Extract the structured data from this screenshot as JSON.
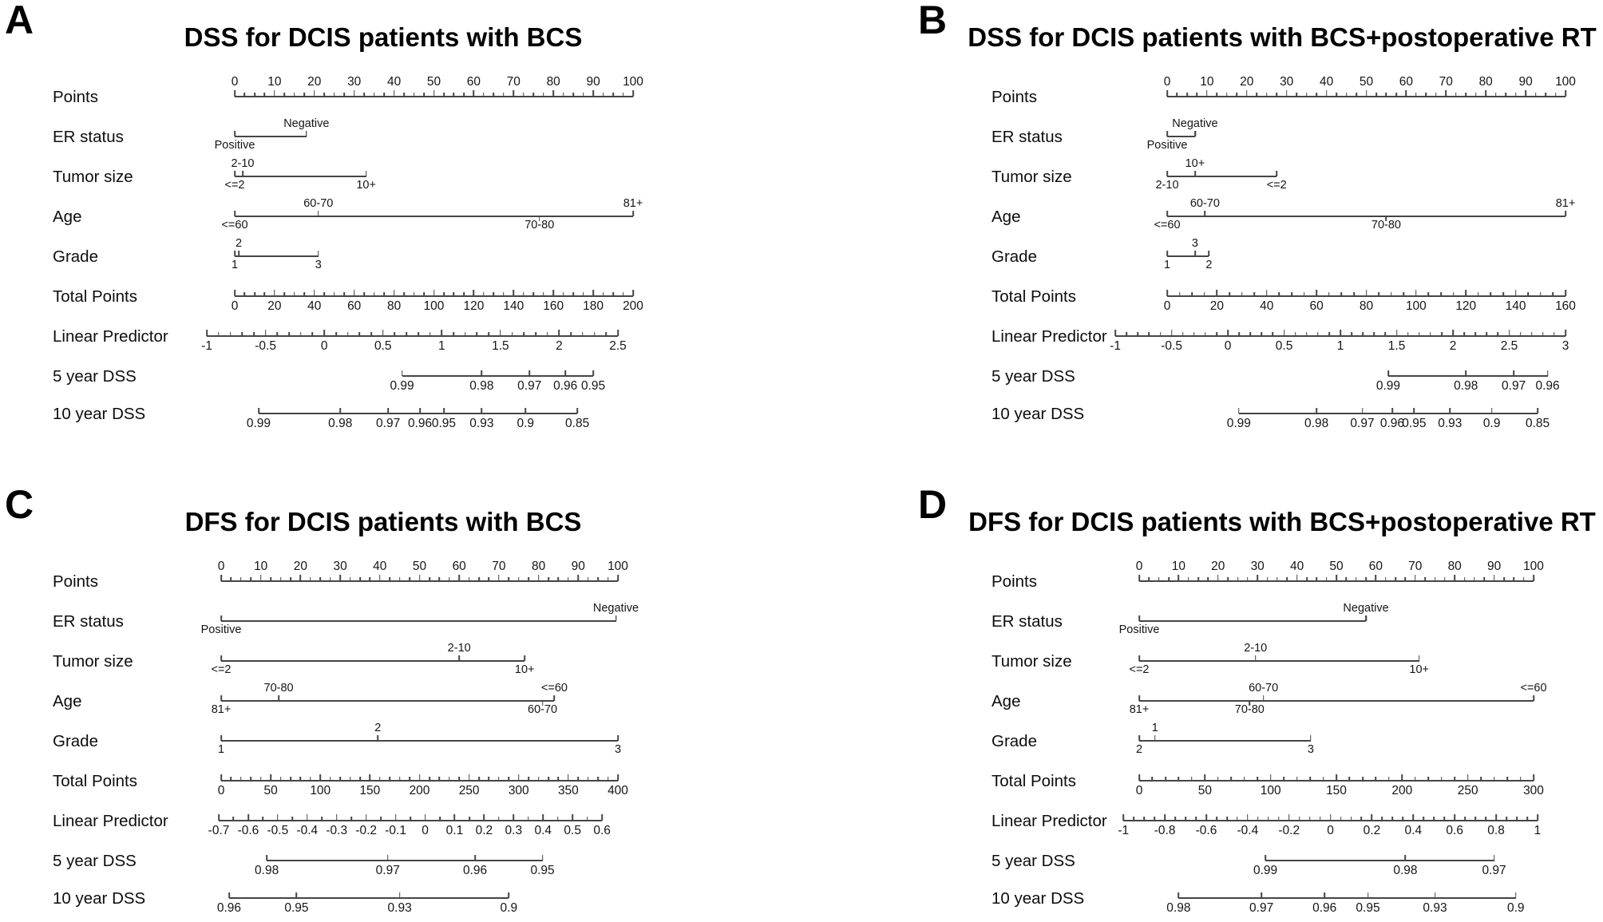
{
  "figure": {
    "background_color": "#ffffff",
    "text_color": "#111111",
    "line_color": "#454545",
    "description": "Four nomograms (A-D) predicting DSS and DFS for DCIS patients"
  },
  "chart_data": [
    {
      "type": "nomogram",
      "panel": "A",
      "title": "DSS for DCIS patients with BCS",
      "rows": [
        {
          "label": "Points",
          "type": "numeric",
          "min": 0,
          "max": 100,
          "step": 10,
          "minor": 2.5,
          "p1": 0,
          "p2": 100,
          "label_side": "above"
        },
        {
          "label": "ER status",
          "type": "factor",
          "line": [
            0,
            18
          ],
          "entries": [
            {
              "p": 18,
              "text": "Negative",
              "side": "above",
              "tick": true
            },
            {
              "p": 0,
              "text": "Positive",
              "side": "below",
              "tick": false
            }
          ]
        },
        {
          "label": "Tumor size",
          "type": "factor",
          "line": [
            0,
            33
          ],
          "entries": [
            {
              "p": 2,
              "text": "2-10",
              "side": "above",
              "tick": true
            },
            {
              "p": 0,
              "text": "<=2",
              "side": "below",
              "tick": false
            },
            {
              "p": 33,
              "text": "10+",
              "side": "below",
              "tick": false
            }
          ]
        },
        {
          "label": "Age",
          "type": "factor",
          "line": [
            0,
            100
          ],
          "entries": [
            {
              "p": 21,
              "text": "60-70",
              "side": "above",
              "tick": true
            },
            {
              "p": 100,
              "text": "81+",
              "side": "above",
              "tick": false
            },
            {
              "p": 0,
              "text": "<=60",
              "side": "below",
              "tick": false
            },
            {
              "p": 76.5,
              "text": "70-80",
              "side": "below",
              "tick": true
            }
          ]
        },
        {
          "label": "Grade",
          "type": "factor",
          "line": [
            0,
            21
          ],
          "entries": [
            {
              "p": 1,
              "text": "2",
              "side": "above",
              "tick": true
            },
            {
              "p": 0,
              "text": "1",
              "side": "below",
              "tick": false
            },
            {
              "p": 21,
              "text": "3",
              "side": "below",
              "tick": false
            }
          ]
        },
        {
          "label": "Total Points",
          "type": "numeric",
          "min": 0,
          "max": 200,
          "step": 20,
          "minor": 5,
          "p1": 0,
          "p2": 100,
          "label_side": "below"
        },
        {
          "label": "Linear Predictor",
          "type": "numeric",
          "min": -1,
          "max": 2.5,
          "step": 0.5,
          "minor": 0.1,
          "p1": -7,
          "p2": 96.2,
          "label_side": "below"
        },
        {
          "label": "5 year DSS",
          "type": "survival",
          "entries": [
            {
              "p": 42,
              "text": "0.99"
            },
            {
              "p": 62,
              "text": "0.98"
            },
            {
              "p": 74,
              "text": "0.97"
            },
            {
              "p": 83,
              "text": "0.96"
            },
            {
              "p": 90,
              "text": "0.95"
            }
          ]
        },
        {
          "label": "10 year DSS",
          "type": "survival",
          "entries": [
            {
              "p": 6,
              "text": "0.99"
            },
            {
              "p": 26.5,
              "text": "0.98"
            },
            {
              "p": 38.5,
              "text": "0.97"
            },
            {
              "p": 46.5,
              "text": "0.96"
            },
            {
              "p": 52.5,
              "text": "0.95"
            },
            {
              "p": 62,
              "text": "0.93"
            },
            {
              "p": 73,
              "text": "0.9"
            },
            {
              "p": 86,
              "text": "0.85"
            }
          ]
        }
      ]
    },
    {
      "type": "nomogram",
      "panel": "B",
      "title": "DSS for DCIS patients with BCS+postoperative RT",
      "rows": [
        {
          "label": "Points",
          "type": "numeric",
          "min": 0,
          "max": 100,
          "step": 10,
          "minor": 2.5,
          "p1": 0,
          "p2": 100,
          "label_side": "above"
        },
        {
          "label": "ER status",
          "type": "factor",
          "line": [
            0,
            7
          ],
          "entries": [
            {
              "p": 7,
              "text": "Negative",
              "side": "above",
              "tick": true
            },
            {
              "p": 0,
              "text": "Positive",
              "side": "below",
              "tick": false
            }
          ]
        },
        {
          "label": "Tumor size",
          "type": "factor",
          "line": [
            0,
            27.5
          ],
          "entries": [
            {
              "p": 7,
              "text": "10+",
              "side": "above",
              "tick": true
            },
            {
              "p": 0,
              "text": "2-10",
              "side": "below",
              "tick": false
            },
            {
              "p": 27.5,
              "text": "<=2",
              "side": "below",
              "tick": false
            }
          ]
        },
        {
          "label": "Age",
          "type": "factor",
          "line": [
            0,
            100
          ],
          "entries": [
            {
              "p": 9.5,
              "text": "60-70",
              "side": "above",
              "tick": true
            },
            {
              "p": 100,
              "text": "81+",
              "side": "above",
              "tick": false
            },
            {
              "p": 0,
              "text": "<=60",
              "side": "below",
              "tick": false
            },
            {
              "p": 55,
              "text": "70-80",
              "side": "below",
              "tick": true
            }
          ]
        },
        {
          "label": "Grade",
          "type": "factor",
          "line": [
            0,
            10.5
          ],
          "entries": [
            {
              "p": 7,
              "text": "3",
              "side": "above",
              "tick": true
            },
            {
              "p": 0,
              "text": "1",
              "side": "below",
              "tick": false
            },
            {
              "p": 10.5,
              "text": "2",
              "side": "below",
              "tick": false
            }
          ]
        },
        {
          "label": "Total Points",
          "type": "numeric",
          "min": 0,
          "max": 160,
          "step": 20,
          "minor": 5,
          "p1": 0,
          "p2": 100,
          "label_side": "below"
        },
        {
          "label": "Linear Predictor",
          "type": "numeric",
          "min": -1,
          "max": 3,
          "step": 0.5,
          "minor": 0.1,
          "p1": -13,
          "p2": 100,
          "label_side": "below"
        },
        {
          "label": "5 year DSS",
          "type": "survival",
          "entries": [
            {
              "p": 55.5,
              "text": "0.99"
            },
            {
              "p": 75,
              "text": "0.98"
            },
            {
              "p": 87,
              "text": "0.97"
            },
            {
              "p": 95.5,
              "text": "0.96"
            }
          ]
        },
        {
          "label": "10 year DSS",
          "type": "survival",
          "entries": [
            {
              "p": 18,
              "text": "0.99"
            },
            {
              "p": 37.5,
              "text": "0.98"
            },
            {
              "p": 49,
              "text": "0.97"
            },
            {
              "p": 56.5,
              "text": "0.96"
            },
            {
              "p": 62,
              "text": "0.95"
            },
            {
              "p": 71,
              "text": "0.93"
            },
            {
              "p": 81.5,
              "text": "0.9"
            },
            {
              "p": 93,
              "text": "0.85"
            }
          ]
        }
      ]
    },
    {
      "type": "nomogram",
      "panel": "C",
      "title": "DFS for DCIS patients with BCS",
      "rows": [
        {
          "label": "Points",
          "type": "numeric",
          "min": 0,
          "max": 100,
          "step": 10,
          "minor": 2.5,
          "p1": 0,
          "p2": 100,
          "label_side": "above"
        },
        {
          "label": "ER status",
          "type": "factor",
          "line": [
            0,
            99.5
          ],
          "entries": [
            {
              "p": 99.5,
              "text": "Negative",
              "side": "above",
              "tick": true
            },
            {
              "p": 0,
              "text": "Positive",
              "side": "below",
              "tick": false
            }
          ]
        },
        {
          "label": "Tumor size",
          "type": "factor",
          "line": [
            0,
            76.5
          ],
          "entries": [
            {
              "p": 60,
              "text": "2-10",
              "side": "above",
              "tick": true
            },
            {
              "p": 0,
              "text": "<=2",
              "side": "below",
              "tick": false
            },
            {
              "p": 76.5,
              "text": "10+",
              "side": "below",
              "tick": false
            }
          ]
        },
        {
          "label": "Age",
          "type": "factor",
          "line": [
            0,
            84
          ],
          "entries": [
            {
              "p": 14.5,
              "text": "70-80",
              "side": "above",
              "tick": true
            },
            {
              "p": 84,
              "text": "<=60",
              "side": "above",
              "tick": false
            },
            {
              "p": 0,
              "text": "81+",
              "side": "below",
              "tick": false
            },
            {
              "p": 81,
              "text": "60-70",
              "side": "below",
              "tick": true
            }
          ]
        },
        {
          "label": "Grade",
          "type": "factor",
          "line": [
            0,
            100
          ],
          "entries": [
            {
              "p": 39.5,
              "text": "2",
              "side": "above",
              "tick": true
            },
            {
              "p": 0,
              "text": "1",
              "side": "below",
              "tick": false
            },
            {
              "p": 100,
              "text": "3",
              "side": "below",
              "tick": false
            }
          ]
        },
        {
          "label": "Total Points",
          "type": "numeric",
          "min": 0,
          "max": 400,
          "step": 50,
          "minor": 10,
          "p1": 0,
          "p2": 100,
          "label_side": "below"
        },
        {
          "label": "Linear Predictor",
          "type": "numeric",
          "min": -0.7,
          "max": 0.6,
          "step": 0.1,
          "minor": 0.05,
          "p1": -0.6,
          "p2": 96,
          "label_side": "below"
        },
        {
          "label": "5 year DSS",
          "type": "survival",
          "entries": [
            {
              "p": 11.5,
              "text": "0.98"
            },
            {
              "p": 42,
              "text": "0.97"
            },
            {
              "p": 64,
              "text": "0.96"
            },
            {
              "p": 81,
              "text": "0.95"
            }
          ]
        },
        {
          "label": "10 year DSS",
          "type": "survival",
          "entries": [
            {
              "p": 2,
              "text": "0.96"
            },
            {
              "p": 19,
              "text": "0.95"
            },
            {
              "p": 45,
              "text": "0.93"
            },
            {
              "p": 72.5,
              "text": "0.9"
            }
          ]
        }
      ]
    },
    {
      "type": "nomogram",
      "panel": "D",
      "title": "DFS for DCIS patients with BCS+postoperative RT",
      "rows": [
        {
          "label": "Points",
          "type": "numeric",
          "min": 0,
          "max": 100,
          "step": 10,
          "minor": 2.5,
          "p1": 0,
          "p2": 100,
          "label_side": "above"
        },
        {
          "label": "ER status",
          "type": "factor",
          "line": [
            0,
            57.5
          ],
          "entries": [
            {
              "p": 57.5,
              "text": "Negative",
              "side": "above",
              "tick": true
            },
            {
              "p": 0,
              "text": "Positive",
              "side": "below",
              "tick": false
            }
          ]
        },
        {
          "label": "Tumor size",
          "type": "factor",
          "line": [
            0,
            71
          ],
          "entries": [
            {
              "p": 29.5,
              "text": "2-10",
              "side": "above",
              "tick": true
            },
            {
              "p": 0,
              "text": "<=2",
              "side": "below",
              "tick": false
            },
            {
              "p": 71,
              "text": "10+",
              "side": "below",
              "tick": false
            }
          ]
        },
        {
          "label": "Age",
          "type": "factor",
          "line": [
            0,
            100
          ],
          "entries": [
            {
              "p": 31.5,
              "text": "60-70",
              "side": "above",
              "tick": true
            },
            {
              "p": 100,
              "text": "<=60",
              "side": "above",
              "tick": false
            },
            {
              "p": 0,
              "text": "81+",
              "side": "below",
              "tick": false
            },
            {
              "p": 28,
              "text": "70-80",
              "side": "below",
              "tick": true
            }
          ]
        },
        {
          "label": "Grade",
          "type": "factor",
          "line": [
            0,
            43.5
          ],
          "entries": [
            {
              "p": 4,
              "text": "1",
              "side": "above",
              "tick": true
            },
            {
              "p": 0,
              "text": "2",
              "side": "below",
              "tick": false
            },
            {
              "p": 43.5,
              "text": "3",
              "side": "below",
              "tick": false
            }
          ]
        },
        {
          "label": "Total Points",
          "type": "numeric",
          "min": 0,
          "max": 300,
          "step": 50,
          "minor": 10,
          "p1": 0,
          "p2": 100,
          "label_side": "below"
        },
        {
          "label": "Linear Predictor",
          "type": "numeric",
          "min": -1,
          "max": 1,
          "step": 0.2,
          "minor": 0.05,
          "p1": -4,
          "p2": 101,
          "label_side": "below"
        },
        {
          "label": "5 year DSS",
          "type": "survival",
          "entries": [
            {
              "p": 32,
              "text": "0.99"
            },
            {
              "p": 67.5,
              "text": "0.98"
            },
            {
              "p": 90,
              "text": "0.97"
            }
          ]
        },
        {
          "label": "10 year DSS",
          "type": "survival",
          "entries": [
            {
              "p": 10,
              "text": "0.98"
            },
            {
              "p": 31,
              "text": "0.97"
            },
            {
              "p": 47,
              "text": "0.96"
            },
            {
              "p": 58,
              "text": "0.95"
            },
            {
              "p": 75,
              "text": "0.93"
            },
            {
              "p": 95.5,
              "text": "0.9"
            }
          ]
        }
      ]
    }
  ]
}
